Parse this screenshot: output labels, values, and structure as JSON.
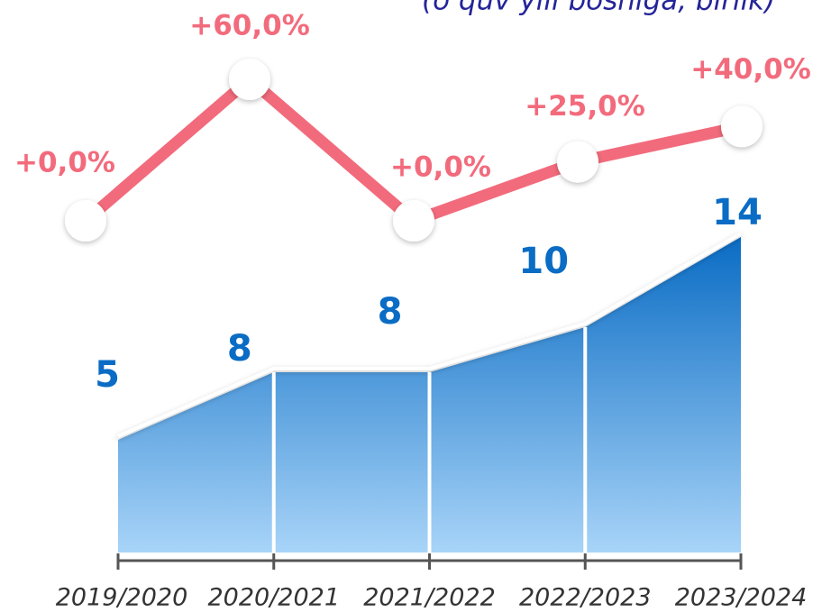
{
  "chart_data": [
    {
      "type": "area",
      "subtitle": "(o‘quv yili boshiga, birlik)",
      "categories": [
        "2019/2020",
        "2020/2021",
        "2021/2022",
        "2022/2023",
        "2023/2024"
      ],
      "values": [
        5,
        8,
        8,
        10,
        14
      ],
      "color": "#0a6cc4"
    },
    {
      "type": "line",
      "values": [
        0,
        60,
        0,
        25,
        40
      ],
      "value_labels": [
        "+0,0%",
        "+60,0%",
        "+0,0%",
        "+25,0%",
        "+40,0%"
      ],
      "color": "#f26b7c"
    }
  ]
}
